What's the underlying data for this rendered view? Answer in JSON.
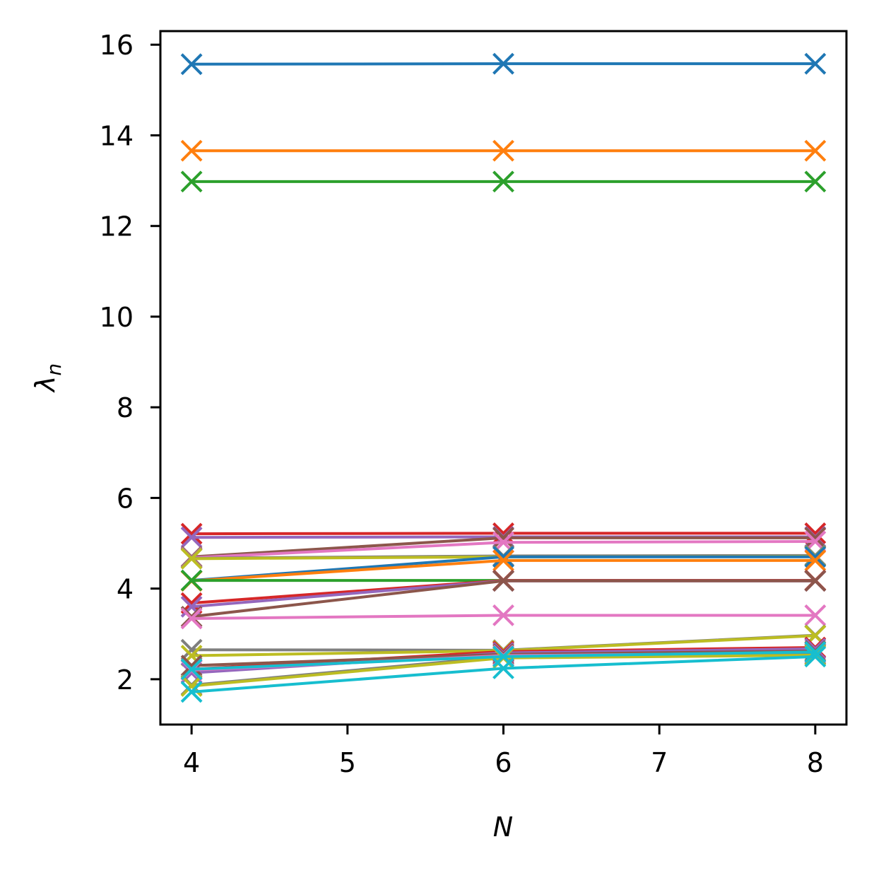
{
  "chart_data": {
    "type": "line",
    "xlabel": "N",
    "ylabel": "λ",
    "ylabel_subscript": "n",
    "xlim": [
      3.8,
      8.2
    ],
    "ylim": [
      1.0,
      16.3
    ],
    "xticks": [
      4,
      5,
      6,
      7,
      8
    ],
    "yticks": [
      2,
      4,
      6,
      8,
      10,
      12,
      14,
      16
    ],
    "marker": "x",
    "grid": false,
    "x": [
      4,
      6,
      8
    ],
    "series": [
      {
        "color": "#1f77b4",
        "values": [
          15.57,
          15.58,
          15.58
        ]
      },
      {
        "color": "#ff7f0e",
        "values": [
          13.66,
          13.66,
          13.66
        ]
      },
      {
        "color": "#2ca02c",
        "values": [
          12.98,
          12.98,
          12.98
        ]
      },
      {
        "color": "#d62728",
        "values": [
          5.21,
          5.22,
          5.22
        ]
      },
      {
        "color": "#9467bd",
        "values": [
          5.13,
          5.14,
          5.14
        ]
      },
      {
        "color": "#8c564b",
        "values": [
          4.7,
          5.12,
          5.12
        ]
      },
      {
        "color": "#e377c2",
        "values": [
          4.68,
          5.02,
          5.04
        ]
      },
      {
        "color": "#7f7f7f",
        "values": [
          4.67,
          4.72,
          4.73
        ]
      },
      {
        "color": "#bcbd22",
        "values": [
          4.66,
          4.7,
          4.71
        ]
      },
      {
        "color": "#1f77b4",
        "values": [
          4.18,
          4.7,
          4.7
        ]
      },
      {
        "color": "#ff7f0e",
        "values": [
          4.17,
          4.62,
          4.62
        ]
      },
      {
        "color": "#2ca02c",
        "values": [
          4.18,
          4.18,
          4.18
        ]
      },
      {
        "color": "#d62728",
        "values": [
          3.68,
          4.18,
          4.18
        ]
      },
      {
        "color": "#9467bd",
        "values": [
          3.6,
          4.17,
          4.17
        ]
      },
      {
        "color": "#8c564b",
        "values": [
          3.38,
          4.17,
          4.17
        ]
      },
      {
        "color": "#e377c2",
        "values": [
          3.34,
          3.41,
          3.41
        ]
      },
      {
        "color": "#7f7f7f",
        "values": [
          2.65,
          2.64,
          2.97
        ]
      },
      {
        "color": "#bcbd22",
        "values": [
          2.52,
          2.63,
          2.96
        ]
      },
      {
        "color": "#d62728",
        "values": [
          2.22,
          2.61,
          2.7
        ]
      },
      {
        "color": "#9467bd",
        "values": [
          2.14,
          2.58,
          2.67
        ]
      },
      {
        "color": "#8c564b",
        "values": [
          2.3,
          2.55,
          2.62
        ]
      },
      {
        "color": "#e377c2",
        "values": [
          2.2,
          2.52,
          2.58
        ]
      },
      {
        "color": "#7f7f7f",
        "values": [
          1.87,
          2.5,
          2.55
        ]
      },
      {
        "color": "#bcbd22",
        "values": [
          1.85,
          2.47,
          2.53
        ]
      },
      {
        "color": "#17becf",
        "values": [
          2.22,
          2.5,
          2.6
        ]
      },
      {
        "color": "#17becf",
        "values": [
          1.72,
          2.24,
          2.5
        ]
      }
    ]
  }
}
